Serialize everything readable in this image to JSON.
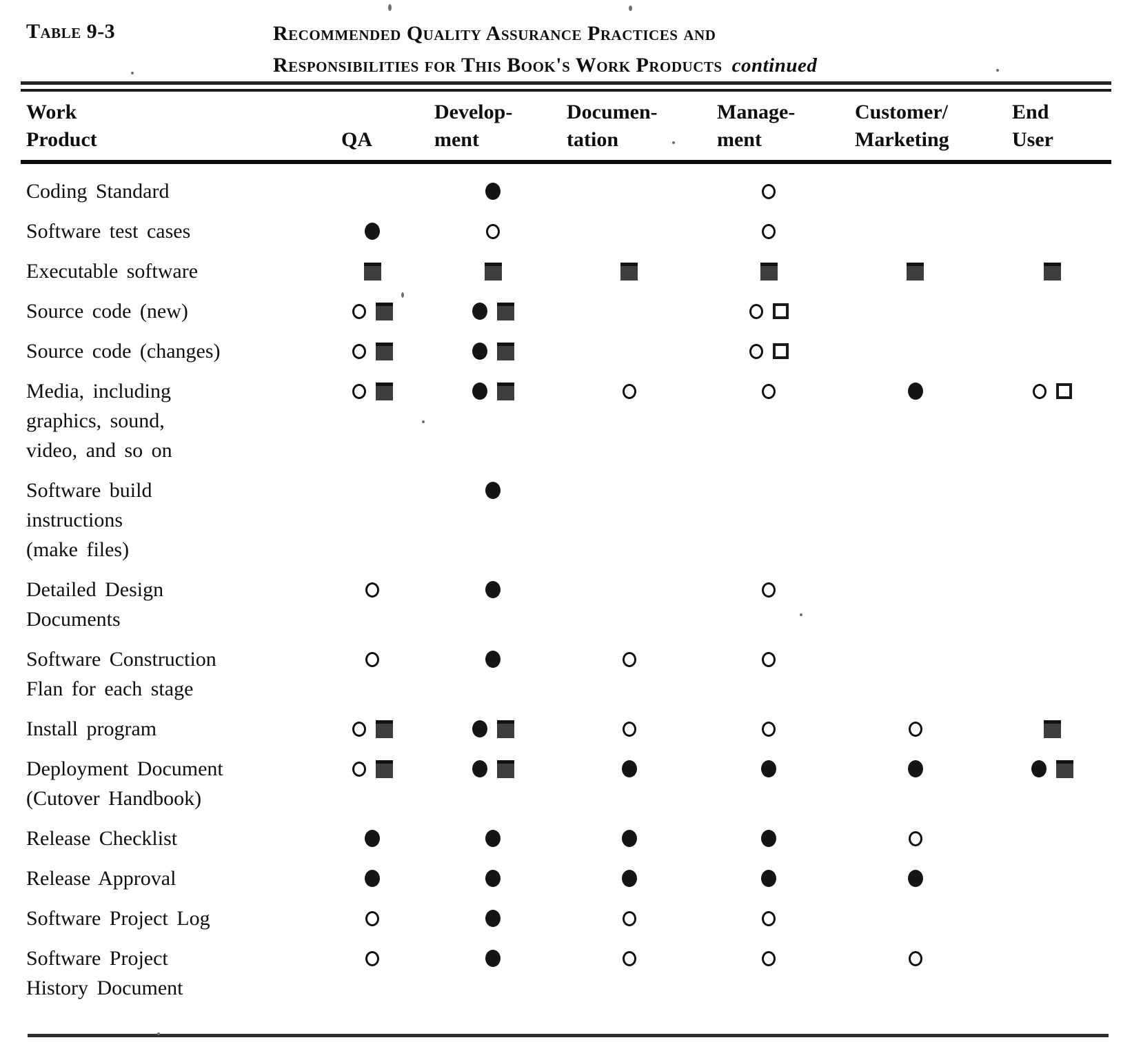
{
  "header": {
    "table_label": "Table 9-3",
    "title_line1": "Recommended Quality Assurance Practices and",
    "title_line2": "Responsibilities for This Book's Work Products",
    "title_continued": "continued"
  },
  "colors": {
    "ink": "#0f0f0f",
    "square_fill": "#3e3e3e",
    "background": "#ffffff"
  },
  "symbol_names": [
    "open-circle",
    "filled-circle",
    "open-square",
    "filled-square"
  ],
  "columns": [
    {
      "id": "work_product",
      "line1": "Work",
      "line2": "Product"
    },
    {
      "id": "qa",
      "line1": "",
      "line2": "QA"
    },
    {
      "id": "development",
      "line1": "Develop-",
      "line2": "ment"
    },
    {
      "id": "documentation",
      "line1": "Documen-",
      "line2": "tation"
    },
    {
      "id": "management",
      "line1": "Manage-",
      "line2": "ment"
    },
    {
      "id": "customer_marketing",
      "line1": "Customer/",
      "line2": "Marketing"
    },
    {
      "id": "end_user",
      "line1": "End",
      "line2": "User"
    }
  ],
  "rows": [
    {
      "label_lines": [
        "Coding Standard"
      ],
      "cells": [
        [],
        [
          "filled-circle"
        ],
        [],
        [
          "open-circle"
        ],
        [],
        []
      ]
    },
    {
      "label_lines": [
        "Software test cases"
      ],
      "cells": [
        [
          "filled-circle"
        ],
        [
          "open-circle"
        ],
        [],
        [
          "open-circle"
        ],
        [],
        []
      ]
    },
    {
      "label_lines": [
        "Executable software"
      ],
      "cells": [
        [
          "filled-square"
        ],
        [
          "filled-square"
        ],
        [
          "filled-square"
        ],
        [
          "filled-square"
        ],
        [
          "filled-square"
        ],
        [
          "filled-square"
        ]
      ]
    },
    {
      "label_lines": [
        "Source code (new)"
      ],
      "cells": [
        [
          "open-circle",
          "filled-square"
        ],
        [
          "filled-circle",
          "filled-square"
        ],
        [],
        [
          "open-circle",
          "open-square"
        ],
        [],
        []
      ]
    },
    {
      "label_lines": [
        "Source code (changes)"
      ],
      "cells": [
        [
          "open-circle",
          "filled-square"
        ],
        [
          "filled-circle",
          "filled-square"
        ],
        [],
        [
          "open-circle",
          "open-square"
        ],
        [],
        []
      ]
    },
    {
      "label_lines": [
        "Media, including",
        "graphics, sound,",
        "video, and so on"
      ],
      "cells": [
        [
          "open-circle",
          "filled-square"
        ],
        [
          "filled-circle",
          "filled-square"
        ],
        [
          "open-circle"
        ],
        [
          "open-circle"
        ],
        [
          "filled-circle"
        ],
        [
          "open-circle",
          "open-square"
        ]
      ]
    },
    {
      "label_lines": [
        "Software  build",
        "instructions",
        "(make files)"
      ],
      "cells": [
        [],
        [
          "filled-circle"
        ],
        [],
        [],
        [],
        []
      ]
    },
    {
      "label_lines": [
        "Detailed Design",
        "Documents"
      ],
      "cells": [
        [
          "open-circle"
        ],
        [
          "filled-circle"
        ],
        [],
        [
          "open-circle"
        ],
        [],
        []
      ]
    },
    {
      "label_lines": [
        "Software  Construction",
        "Flan for each stage"
      ],
      "cells": [
        [
          "open-circle"
        ],
        [
          "filled-circle"
        ],
        [
          "open-circle"
        ],
        [
          "open-circle"
        ],
        [],
        []
      ]
    },
    {
      "label_lines": [
        "Install program"
      ],
      "cells": [
        [
          "open-circle",
          "filled-square"
        ],
        [
          "filled-circle",
          "filled-square"
        ],
        [
          "open-circle"
        ],
        [
          "open-circle"
        ],
        [
          "open-circle"
        ],
        [
          "filled-square"
        ]
      ]
    },
    {
      "label_lines": [
        "Deployment Document",
        "(Cutover  Handbook)"
      ],
      "cells": [
        [
          "open-circle",
          "filled-square"
        ],
        [
          "filled-circle",
          "filled-square"
        ],
        [
          "filled-circle"
        ],
        [
          "filled-circle"
        ],
        [
          "filled-circle"
        ],
        [
          "filled-circle",
          "filled-square"
        ]
      ]
    },
    {
      "label_lines": [
        "Release  Checklist"
      ],
      "cells": [
        [
          "filled-circle"
        ],
        [
          "filled-circle"
        ],
        [
          "filled-circle"
        ],
        [
          "filled-circle"
        ],
        [
          "open-circle"
        ],
        []
      ]
    },
    {
      "label_lines": [
        "Release  Approval"
      ],
      "cells": [
        [
          "filled-circle"
        ],
        [
          "filled-circle"
        ],
        [
          "filled-circle"
        ],
        [
          "filled-circle"
        ],
        [
          "filled-circle"
        ],
        []
      ]
    },
    {
      "label_lines": [
        "Software Project Log"
      ],
      "cells": [
        [
          "open-circle"
        ],
        [
          "filled-circle"
        ],
        [
          "open-circle"
        ],
        [
          "open-circle"
        ],
        [],
        []
      ]
    },
    {
      "label_lines": [
        "Software Project",
        "History Document"
      ],
      "cells": [
        [
          "open-circle"
        ],
        [
          "filled-circle"
        ],
        [
          "open-circle"
        ],
        [
          "open-circle"
        ],
        [
          "open-circle"
        ],
        []
      ]
    }
  ]
}
